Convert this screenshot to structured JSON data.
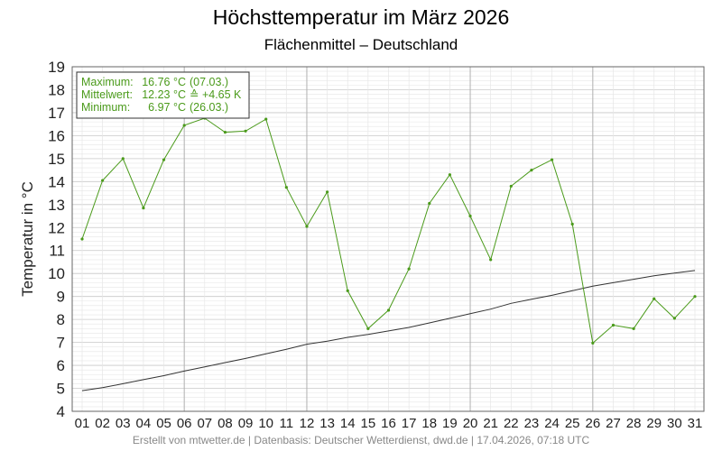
{
  "title": "Höchsttemperatur im März 2026",
  "subtitle": "Flächenmittel – Deutschland",
  "footer": "Erstellt von mtwetter.de | Datenbasis: Deutscher Wetterdienst, dwd.de | 17.04.2026, 07:18 UTC",
  "colors": {
    "series": "#4a9a1a",
    "normal": "#333333",
    "grid_major": "#c8c8c8",
    "grid_minor": "#e6e6e6"
  },
  "legend": {
    "max_label": "Maximum:",
    "max_value": "16.76 °C",
    "max_date": "(07.03.)",
    "mean_label": "Mittelwert:",
    "mean_value": "12.23 °C",
    "mean_anomaly": "≙ +4.65 K",
    "min_label": "Minimum:",
    "min_value": "6.97 °C",
    "min_date": "(26.03.)"
  },
  "chart_data": {
    "type": "line",
    "title": "Höchsttemperatur im März 2026",
    "subtitle": "Flächenmittel – Deutschland",
    "xlabel": "",
    "ylabel": "Temperatur in °C",
    "ylim": [
      4,
      19
    ],
    "xlim": [
      1,
      31
    ],
    "grid": true,
    "legend_position": "top-left",
    "categories": [
      "01",
      "02",
      "03",
      "04",
      "05",
      "06",
      "07",
      "08",
      "09",
      "10",
      "11",
      "12",
      "13",
      "14",
      "15",
      "16",
      "17",
      "18",
      "19",
      "20",
      "21",
      "22",
      "23",
      "24",
      "25",
      "26",
      "27",
      "28",
      "29",
      "30",
      "31"
    ],
    "yticks": [
      4,
      5,
      6,
      7,
      8,
      9,
      10,
      11,
      12,
      13,
      14,
      15,
      16,
      17,
      18,
      19
    ],
    "series": [
      {
        "values": [
          11.5,
          14.05,
          15.0,
          12.85,
          14.95,
          16.45,
          16.76,
          16.15,
          16.2,
          16.72,
          13.75,
          12.05,
          13.55,
          9.25,
          7.6,
          8.4,
          10.2,
          13.05,
          14.3,
          12.5,
          10.6,
          13.8,
          14.5,
          14.95,
          12.15,
          6.97,
          7.75,
          7.6,
          8.9,
          8.05,
          9.0
        ]
      },
      {
        "values": [
          4.9,
          5.03,
          5.2,
          5.38,
          5.55,
          5.75,
          5.93,
          6.12,
          6.3,
          6.5,
          6.7,
          6.92,
          7.05,
          7.22,
          7.35,
          7.5,
          7.65,
          7.85,
          8.05,
          8.25,
          8.45,
          8.7,
          8.88,
          9.05,
          9.25,
          9.45,
          9.6,
          9.75,
          9.9,
          10.02,
          10.13
        ]
      }
    ]
  }
}
